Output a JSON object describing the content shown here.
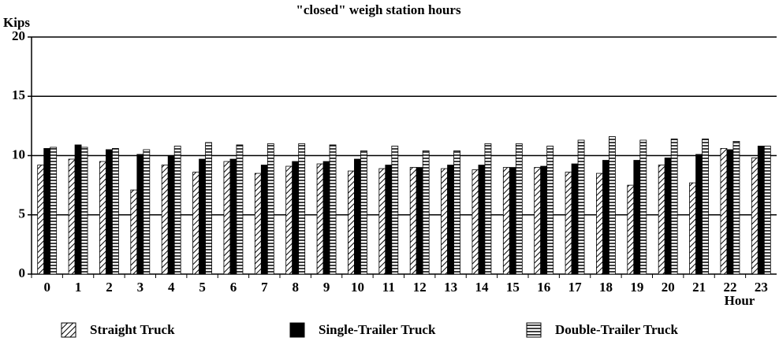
{
  "chart_data": {
    "type": "bar",
    "title": "\"closed\" weigh station hours",
    "y_label": "Kips",
    "x_label": "Hour",
    "categories": [
      "0",
      "1",
      "2",
      "3",
      "4",
      "5",
      "6",
      "7",
      "8",
      "9",
      "10",
      "11",
      "12",
      "13",
      "14",
      "15",
      "16",
      "17",
      "18",
      "19",
      "20",
      "21",
      "22",
      "23"
    ],
    "series": [
      {
        "name": "Straight Truck",
        "color": "#000000",
        "pattern": "hatch",
        "values": [
          9.2,
          9.7,
          9.5,
          7.1,
          9.2,
          8.6,
          9.5,
          8.5,
          9.1,
          9.3,
          8.7,
          8.9,
          9.0,
          8.9,
          8.8,
          9.0,
          9.0,
          8.6,
          8.5,
          7.5,
          9.2,
          7.7,
          10.6,
          9.8
        ]
      },
      {
        "name": "Single-Trailer Truck",
        "color": "#000000",
        "pattern": "solid",
        "values": [
          10.6,
          10.9,
          10.5,
          10.1,
          10.0,
          9.7,
          9.7,
          9.2,
          9.5,
          9.5,
          9.7,
          9.2,
          9.0,
          9.2,
          9.2,
          9.0,
          9.1,
          9.3,
          9.6,
          9.6,
          9.8,
          10.1,
          10.5,
          10.8
        ]
      },
      {
        "name": "Double-Trailer Truck",
        "color": "#000000",
        "pattern": "hlines",
        "values": [
          10.7,
          10.7,
          10.6,
          10.5,
          10.8,
          11.1,
          10.9,
          11.0,
          11.0,
          10.9,
          10.4,
          10.8,
          10.4,
          10.4,
          11.0,
          11.0,
          10.8,
          11.3,
          11.6,
          11.3,
          11.4,
          11.4,
          11.2,
          10.8
        ]
      }
    ],
    "ylim": [
      0,
      20
    ],
    "yticks": [
      0,
      5,
      10,
      15,
      20
    ],
    "grid": true
  }
}
